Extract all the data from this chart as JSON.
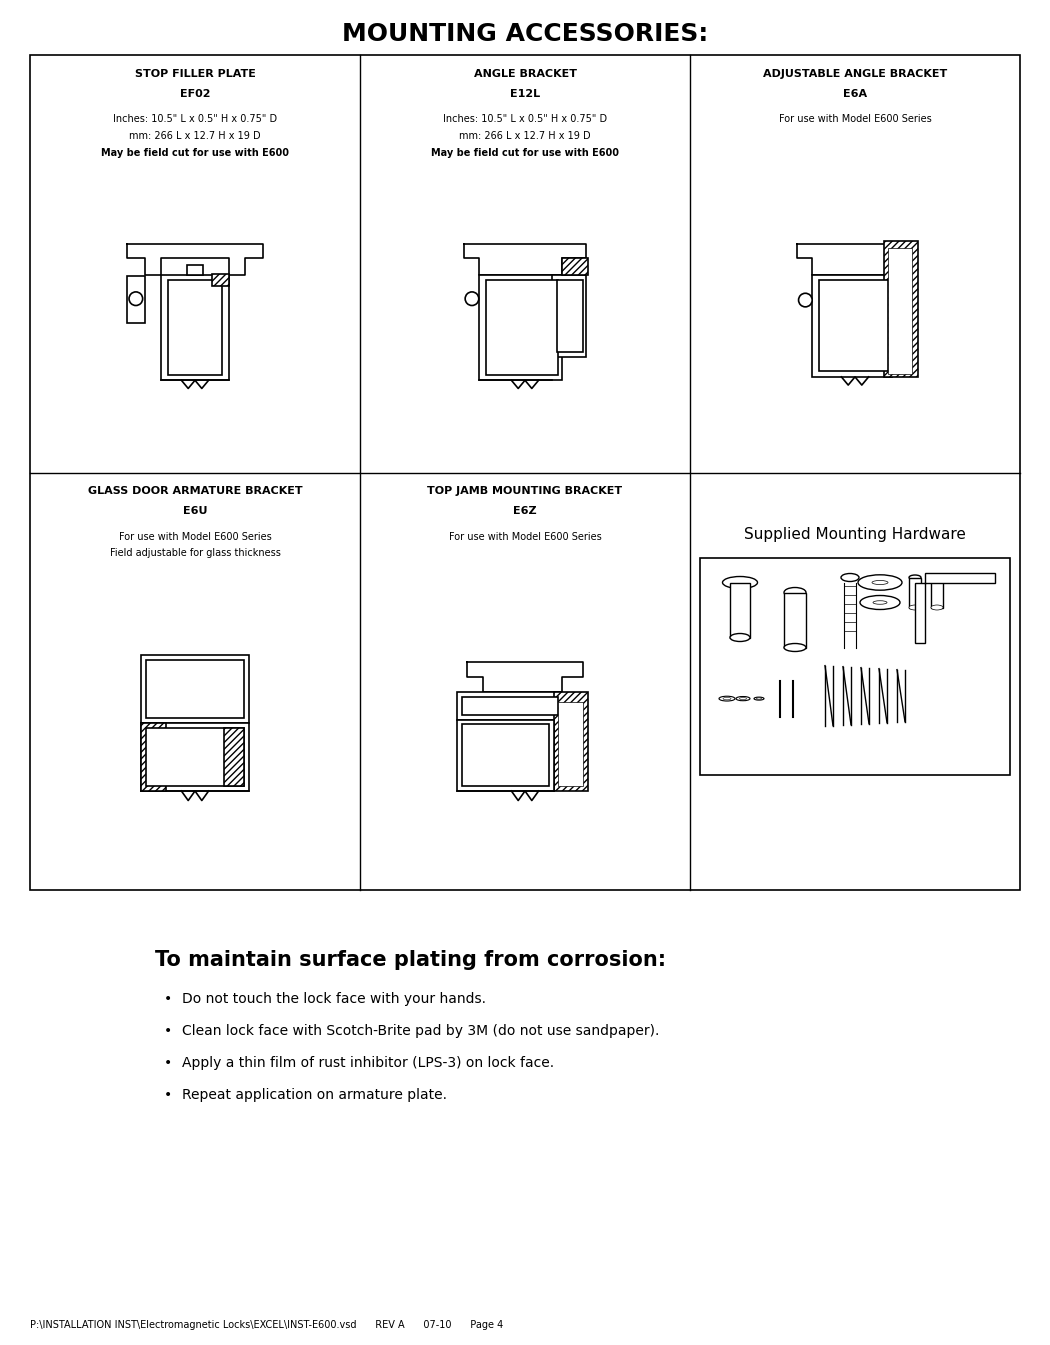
{
  "title": "MOUNTING ACCESSORIES:",
  "bg_color": "#ffffff",
  "cells": [
    {
      "row": 0,
      "col": 0,
      "title_lines": [
        "STOP FILLER PLATE",
        "EF02"
      ],
      "lines": [
        "Inches: 10.5\" L x 0.5\" H x 0.75\" D",
        "mm: 266 L x 12.7 H x 19 D",
        "May be field cut for use with E600"
      ],
      "bold_last": true
    },
    {
      "row": 0,
      "col": 1,
      "title_lines": [
        "ANGLE BRACKET",
        "E12L"
      ],
      "lines": [
        "Inches: 10.5\" L x 0.5\" H x 0.75\" D",
        "mm: 266 L x 12.7 H x 19 D",
        "May be field cut for use with E600"
      ],
      "bold_last": true
    },
    {
      "row": 0,
      "col": 2,
      "title_lines": [
        "ADJUSTABLE ANGLE BRACKET",
        "E6A"
      ],
      "lines": [
        "For use with Model E600 Series"
      ],
      "bold_last": false
    },
    {
      "row": 1,
      "col": 0,
      "title_lines": [
        "GLASS DOOR ARMATURE BRACKET",
        "E6U"
      ],
      "lines": [
        "For use with Model E600 Series",
        "Field adjustable for glass thickness"
      ],
      "bold_last": false
    },
    {
      "row": 1,
      "col": 1,
      "title_lines": [
        "TOP JAMB MOUNTING BRACKET",
        "E6Z"
      ],
      "lines": [
        "For use with Model E600 Series"
      ],
      "bold_last": false
    },
    {
      "row": 1,
      "col": 2,
      "title_lines": [
        "Supplied Mounting Hardware"
      ],
      "lines": [],
      "bold_last": false,
      "special": "hardware_photo"
    }
  ],
  "bottom_text_title": "To maintain surface plating from corrosion:",
  "bottom_bullets": [
    "Do not touch the lock face with your hands.",
    "Clean lock face with Scotch-Brite pad by 3M (do not use sandpaper).",
    "Apply a thin film of rust inhibitor (LPS-3) on lock face.",
    "Repeat application on armature plate."
  ],
  "footer": "P:\\INSTALLATION INST\\Electromagnetic Locks\\EXCEL\\INST-E600.vsd      REV A      07-10      Page 4"
}
